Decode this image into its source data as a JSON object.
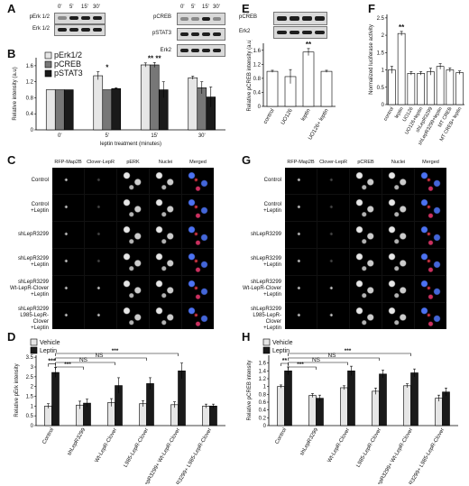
{
  "panels": {
    "A": {
      "letter": "A",
      "left_blot": [
        "pErk 1/2",
        "Erk 1/2"
      ],
      "right_blot": [
        "pCREB",
        "pSTAT3",
        "Erk2"
      ],
      "times": [
        "0'",
        "5'",
        "15'",
        "30'"
      ]
    },
    "E": {
      "letter": "E",
      "blot": [
        "pCREB",
        "Erk2"
      ]
    },
    "B": {
      "letter": "B"
    },
    "F": {
      "letter": "F"
    },
    "C": {
      "letter": "C",
      "columns": [
        "RFP-Map2B",
        "Clover-LepR",
        "pERK",
        "Nuclei",
        "Merged"
      ],
      "rows": [
        "Control",
        "Control\n+Leptin",
        "shLepR3299",
        "shLepR3299\n+Leptin",
        "shLepR3299\nWt-LepR-Clover\n+Leptin",
        "shLepR3299\nL985-LepR-Clover\n+Leptin"
      ]
    },
    "G": {
      "letter": "G",
      "columns": [
        "RFP-Map2B",
        "Clover-LepR",
        "pCREB",
        "Nuclei",
        "Merged"
      ],
      "rows": [
        "Control",
        "Control\n+Leptin",
        "shLepR3299",
        "shLepR3299\n+Leptin",
        "shLepR3299\nWt-LepR-Clover\n+Leptin",
        "shLepR3299\nL985-LepR-Clover\n+Leptin"
      ]
    },
    "D": {
      "letter": "D"
    },
    "H": {
      "letter": "H"
    }
  },
  "colors": {
    "light": "#e6e6e6",
    "medium": "#777777",
    "dark": "#1a1a1a",
    "white": "#ffffff"
  },
  "chart_data": [
    {
      "panel": "B",
      "type": "bar",
      "categories": [
        "0'",
        "5'",
        "15'",
        "30'"
      ],
      "xlabel": "leptin treatment (minutes)",
      "ylabel": "Relative intensity (a.u)",
      "ylim": [
        0,
        1.8
      ],
      "yticks": [
        "0",
        "0.4",
        "0.8",
        "1.2",
        "1.6"
      ],
      "legend": "top-left",
      "series": [
        {
          "name": "pErk1/2",
          "values": [
            1.0,
            1.35,
            1.62,
            1.3
          ],
          "errors": [
            0,
            0.1,
            0.05,
            0.04
          ],
          "color": "#e6e6e6"
        },
        {
          "name": "pCREB",
          "values": [
            1.0,
            1.0,
            1.62,
            1.05
          ],
          "errors": [
            0,
            0,
            0.06,
            0.15
          ],
          "color": "#777777"
        },
        {
          "name": "pSTAT3",
          "values": [
            1.0,
            1.03,
            1.0,
            0.82
          ],
          "errors": [
            0,
            0.02,
            0.2,
            0.25
          ],
          "color": "#1a1a1a"
        }
      ],
      "annotations": [
        {
          "category": "5'",
          "text": "*"
        },
        {
          "category": "15'",
          "text": "** **"
        }
      ]
    },
    {
      "panel": "E",
      "type": "bar",
      "categories": [
        "control",
        "UO126",
        "leptin",
        "UO126+ leptin"
      ],
      "ylabel": "Relative pCREB intensity (a.u)",
      "ylim": [
        0,
        1.8
      ],
      "yticks": [
        "0",
        "0.4",
        "0.8",
        "1.2",
        "1.6"
      ],
      "values": [
        1.0,
        0.85,
        1.55,
        1.0
      ],
      "errors": [
        0.03,
        0.2,
        0.1,
        0.03
      ],
      "annotations": [
        {
          "category": "leptin",
          "text": "**"
        }
      ]
    },
    {
      "panel": "F",
      "type": "bar",
      "categories": [
        "control",
        "leptin",
        "UO126",
        "UO126+leptin",
        "shLepR3299",
        "shLepR3299+leptin",
        "MT CREB",
        "MT CREB+ leptin"
      ],
      "ylabel": "Normalized luciferase activity",
      "ylim": [
        0,
        2.6
      ],
      "yticks": [
        "0",
        "0.5",
        "1",
        "1.5",
        "2",
        "2.5"
      ],
      "values": [
        1.0,
        2.05,
        0.9,
        0.9,
        0.95,
        1.1,
        1.0,
        0.92
      ],
      "errors": [
        0.1,
        0.06,
        0.05,
        0.05,
        0.1,
        0.08,
        0.06,
        0.05
      ],
      "annotations": [
        {
          "category": "leptin",
          "text": "**"
        }
      ]
    },
    {
      "panel": "D",
      "type": "bar",
      "categories": [
        "Control",
        "shLepR3299",
        "Wt-LepR-Clover",
        "L985-LepR-Clover",
        "shLepR3299+ Wt-LepR-Clover",
        "sh-LepR3299+ L985-LepR-Clover"
      ],
      "ylabel": "Relative pErk intensity",
      "ylim": [
        0,
        3.6
      ],
      "yticks": [
        "0",
        "0.5",
        "1",
        "1.5",
        "2",
        "2.5",
        "3",
        "3.5"
      ],
      "legend": "top-left",
      "series": [
        {
          "name": "Vehicle",
          "values": [
            1.0,
            1.05,
            1.18,
            1.12,
            1.07,
            1.0
          ],
          "errors": [
            0.12,
            0.2,
            0.2,
            0.15,
            0.15,
            0.1
          ],
          "color": "#e6e6e6"
        },
        {
          "name": "Leptin",
          "values": [
            2.72,
            1.15,
            2.05,
            2.15,
            2.8,
            1.0
          ],
          "errors": [
            0.25,
            0.2,
            0.4,
            0.3,
            0.4,
            0.1
          ],
          "color": "#1a1a1a"
        }
      ],
      "significance": [
        "***",
        "***",
        "NS",
        "NS",
        "***"
      ]
    },
    {
      "panel": "H",
      "type": "bar",
      "categories": [
        "Control",
        "shLepR3299",
        "Wt-LepR-Clover",
        "L985-LepR-Clover",
        "shLepR3299+ Wt-LepR-Clover",
        "sh-LepR3299+ L985-LepR-Clover"
      ],
      "ylabel": "Relative pCREB intensity",
      "ylim": [
        0,
        1.8
      ],
      "yticks": [
        "0",
        "0.2",
        "0.4",
        "0.6",
        "0.8",
        "1",
        "1.2",
        "1.4",
        "1.6"
      ],
      "legend": "top-left",
      "series": [
        {
          "name": "Vehicle",
          "values": [
            1.0,
            0.77,
            0.97,
            0.88,
            1.02,
            0.7
          ],
          "errors": [
            0.04,
            0.05,
            0.05,
            0.08,
            0.05,
            0.08
          ],
          "color": "#e6e6e6"
        },
        {
          "name": "Leptin",
          "values": [
            1.4,
            0.7,
            1.4,
            1.32,
            1.35,
            0.86
          ],
          "errors": [
            0.1,
            0.08,
            0.12,
            0.1,
            0.1,
            0.1
          ],
          "color": "#1a1a1a"
        }
      ],
      "significance": [
        "**",
        "***",
        "NS",
        "NS",
        "***"
      ]
    }
  ]
}
